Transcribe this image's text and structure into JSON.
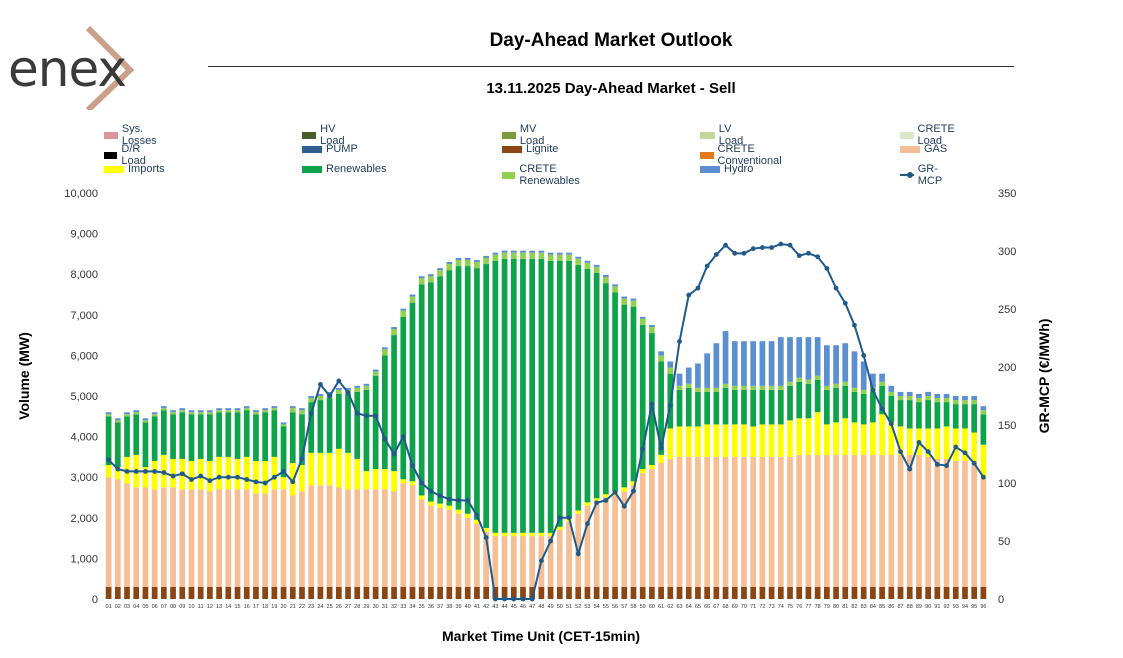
{
  "logo": {
    "text": "enex"
  },
  "header": {
    "title": "Day-Ahead Market Outlook",
    "subtitle": "13.11.2025  Day-Ahead Market - Sell"
  },
  "legend": [
    {
      "label": "Sys. Losses",
      "color": "#d9959a",
      "kind": "box"
    },
    {
      "label": "HV Load",
      "color": "#4a5e2a",
      "kind": "box"
    },
    {
      "label": "MV Load",
      "color": "#7a9a3c",
      "kind": "box"
    },
    {
      "label": "LV Load",
      "color": "#c3d99a",
      "kind": "box"
    },
    {
      "label": "CRETE Load",
      "color": "#dbe8c5",
      "kind": "box"
    },
    {
      "label": "D/R Load",
      "color": "#000000",
      "kind": "box"
    },
    {
      "label": "PUMP",
      "color": "#2f5d8e",
      "kind": "box"
    },
    {
      "label": "Lignite",
      "color": "#8b4513",
      "kind": "box"
    },
    {
      "label": "CRETE Conventional",
      "color": "#e07a1a",
      "kind": "box"
    },
    {
      "label": "GAS",
      "color": "#f6be94",
      "kind": "box"
    },
    {
      "label": "Imports",
      "color": "#ffff00",
      "kind": "box"
    },
    {
      "label": "Renewables",
      "color": "#0ea34a",
      "kind": "box"
    },
    {
      "label": "CRETE Renewables",
      "color": "#92d050",
      "kind": "box"
    },
    {
      "label": "Hydro",
      "color": "#5b8fd0",
      "kind": "box"
    },
    {
      "label": "GR-MCP",
      "color": "#1f5a8a",
      "kind": "line"
    }
  ],
  "chart_data": {
    "type": "bar",
    "stacked": true,
    "secondary_line": "GR-MCP",
    "xlabel": "Market Time Unit (CET-15min)",
    "ylabel": "Volume (MW)",
    "y2label": "GR-MCP (€/MWh)",
    "ylim": [
      0,
      10000
    ],
    "yticks": [
      "0",
      "1,000",
      "2,000",
      "3,000",
      "4,000",
      "5,000",
      "6,000",
      "7,000",
      "8,000",
      "9,000",
      "10,000"
    ],
    "y2lim": [
      0,
      350
    ],
    "y2ticks": [
      "0",
      "50",
      "100",
      "150",
      "200",
      "250",
      "300",
      "350"
    ],
    "categories": [
      "01",
      "02",
      "03",
      "04",
      "05",
      "06",
      "07",
      "08",
      "09",
      "10",
      "11",
      "12",
      "13",
      "14",
      "15",
      "16",
      "17",
      "18",
      "19",
      "20",
      "21",
      "22",
      "23",
      "24",
      "25",
      "26",
      "27",
      "28",
      "29",
      "30",
      "31",
      "32",
      "33",
      "34",
      "35",
      "36",
      "37",
      "38",
      "39",
      "40",
      "41",
      "42",
      "43",
      "44",
      "45",
      "46",
      "47",
      "48",
      "49",
      "50",
      "51",
      "52",
      "53",
      "54",
      "55",
      "56",
      "57",
      "58",
      "59",
      "60",
      "61",
      "62",
      "63",
      "64",
      "65",
      "66",
      "67",
      "68",
      "69",
      "70",
      "71",
      "72",
      "73",
      "74",
      "75",
      "76",
      "77",
      "78",
      "79",
      "80",
      "81",
      "82",
      "83",
      "84",
      "85",
      "86",
      "87",
      "88",
      "89",
      "90",
      "91",
      "92",
      "93",
      "94",
      "95",
      "96"
    ],
    "series": [
      {
        "name": "Lignite",
        "color": "#8b4513",
        "values": [
          300,
          300,
          300,
          300,
          300,
          300,
          300,
          300,
          300,
          300,
          300,
          300,
          300,
          300,
          300,
          300,
          300,
          300,
          300,
          300,
          300,
          300,
          300,
          300,
          300,
          300,
          300,
          300,
          300,
          300,
          300,
          300,
          300,
          300,
          300,
          300,
          300,
          300,
          300,
          300,
          300,
          300,
          300,
          300,
          300,
          300,
          300,
          300,
          300,
          300,
          300,
          300,
          300,
          300,
          300,
          300,
          300,
          300,
          300,
          300,
          300,
          300,
          300,
          300,
          300,
          300,
          300,
          300,
          300,
          300,
          300,
          300,
          300,
          300,
          300,
          300,
          300,
          300,
          300,
          300,
          300,
          300,
          300,
          300,
          300,
          300,
          300,
          300,
          300,
          300,
          300,
          300,
          300,
          300,
          300,
          300
        ]
      },
      {
        "name": "GAS",
        "color": "#f6be94",
        "values": [
          2700,
          2650,
          2550,
          2450,
          2450,
          2400,
          2450,
          2450,
          2400,
          2400,
          2400,
          2350,
          2400,
          2400,
          2400,
          2400,
          2300,
          2300,
          2400,
          2400,
          2250,
          2350,
          2500,
          2500,
          2500,
          2450,
          2400,
          2400,
          2400,
          2400,
          2400,
          2350,
          2550,
          2500,
          2150,
          2000,
          1950,
          1900,
          1800,
          1700,
          1550,
          1350,
          1250,
          1250,
          1250,
          1250,
          1250,
          1250,
          1250,
          1400,
          1600,
          1800,
          2000,
          2100,
          2200,
          2250,
          2350,
          2500,
          2800,
          2900,
          3050,
          3150,
          3200,
          3200,
          3200,
          3200,
          3200,
          3200,
          3200,
          3200,
          3200,
          3200,
          3200,
          3200,
          3200,
          3250,
          3250,
          3250,
          3250,
          3250,
          3250,
          3250,
          3250,
          3250,
          3250,
          3250,
          3250,
          3250,
          3250,
          3200,
          3150,
          3150,
          3100,
          3100,
          3050,
          2700
        ]
      },
      {
        "name": "Imports",
        "color": "#ffff00",
        "values": [
          300,
          300,
          650,
          800,
          500,
          700,
          800,
          700,
          750,
          700,
          750,
          750,
          800,
          800,
          750,
          800,
          800,
          800,
          800,
          300,
          800,
          650,
          800,
          800,
          800,
          950,
          900,
          750,
          450,
          500,
          500,
          500,
          100,
          100,
          100,
          100,
          100,
          100,
          100,
          100,
          100,
          100,
          80,
          80,
          80,
          80,
          80,
          80,
          80,
          80,
          80,
          80,
          80,
          80,
          80,
          100,
          100,
          100,
          100,
          100,
          200,
          750,
          750,
          750,
          750,
          800,
          800,
          800,
          800,
          800,
          750,
          800,
          800,
          800,
          900,
          900,
          900,
          1050,
          750,
          800,
          900,
          800,
          750,
          800,
          1000,
          800,
          700,
          650,
          650,
          700,
          750,
          800,
          800,
          800,
          750,
          800
        ]
      },
      {
        "name": "Renewables",
        "color": "#0ea34a",
        "values": [
          1200,
          1100,
          1000,
          1000,
          1100,
          1100,
          1100,
          1100,
          1150,
          1150,
          1100,
          1150,
          1100,
          1100,
          1150,
          1150,
          1150,
          1200,
          1150,
          1250,
          1250,
          1250,
          1250,
          1300,
          1350,
          1350,
          1450,
          1650,
          2000,
          2300,
          2800,
          3350,
          4000,
          4400,
          5200,
          5400,
          5600,
          5800,
          6000,
          6100,
          6200,
          6500,
          6700,
          6750,
          6750,
          6750,
          6750,
          6750,
          6700,
          6550,
          6350,
          6050,
          5750,
          5550,
          5200,
          4900,
          4500,
          4300,
          3550,
          3250,
          2300,
          1350,
          900,
          950,
          850,
          800,
          800,
          900,
          850,
          850,
          900,
          850,
          850,
          850,
          850,
          900,
          850,
          800,
          850,
          850,
          800,
          750,
          750,
          750,
          700,
          650,
          650,
          700,
          650,
          700,
          650,
          600,
          600,
          600,
          700,
          750
        ]
      },
      {
        "name": "CRETE Renewables",
        "color": "#92d050",
        "values": [
          50,
          50,
          50,
          50,
          50,
          50,
          50,
          50,
          50,
          50,
          50,
          50,
          50,
          50,
          50,
          50,
          50,
          50,
          50,
          50,
          100,
          100,
          100,
          100,
          100,
          100,
          100,
          100,
          100,
          100,
          150,
          150,
          150,
          150,
          150,
          150,
          150,
          150,
          150,
          150,
          150,
          150,
          150,
          150,
          150,
          150,
          150,
          150,
          150,
          150,
          150,
          150,
          150,
          150,
          150,
          150,
          150,
          150,
          150,
          150,
          150,
          150,
          100,
          100,
          100,
          100,
          100,
          100,
          100,
          100,
          100,
          100,
          100,
          100,
          100,
          100,
          100,
          100,
          100,
          100,
          100,
          100,
          100,
          100,
          100,
          100,
          100,
          100,
          100,
          100,
          100,
          100,
          100,
          100,
          100,
          100
        ]
      },
      {
        "name": "Hydro",
        "color": "#5b8fd0",
        "values": [
          50,
          50,
          50,
          50,
          50,
          50,
          50,
          50,
          50,
          50,
          50,
          50,
          50,
          50,
          50,
          50,
          50,
          50,
          50,
          50,
          50,
          50,
          50,
          50,
          50,
          50,
          50,
          50,
          50,
          50,
          50,
          50,
          50,
          50,
          50,
          50,
          50,
          50,
          50,
          50,
          50,
          50,
          50,
          50,
          50,
          50,
          50,
          50,
          50,
          50,
          50,
          50,
          50,
          50,
          50,
          50,
          50,
          50,
          50,
          50,
          100,
          150,
          300,
          400,
          600,
          850,
          1100,
          1300,
          1100,
          1100,
          1100,
          1100,
          1100,
          1200,
          1100,
          1000,
          1050,
          950,
          1000,
          950,
          950,
          900,
          700,
          350,
          200,
          150,
          100,
          100,
          100,
          100,
          100,
          100,
          100,
          100,
          100,
          100
        ]
      }
    ],
    "line": {
      "name": "GR-MCP",
      "color": "#1f5a8a",
      "values": [
        120,
        112,
        110,
        110,
        110,
        110,
        109,
        106,
        108,
        103,
        106,
        102,
        105,
        105,
        105,
        103,
        101,
        100,
        105,
        110,
        101,
        121,
        160,
        185,
        175,
        188,
        178,
        160,
        158,
        158,
        138,
        125,
        140,
        115,
        100,
        93,
        89,
        86,
        85,
        85,
        72,
        53,
        0,
        0,
        0,
        0,
        0,
        33,
        50,
        70,
        70,
        39,
        65,
        83,
        85,
        92,
        80,
        93,
        129,
        168,
        130,
        167,
        222,
        262,
        268,
        287,
        297,
        305,
        298,
        298,
        302,
        303,
        303,
        306,
        305,
        296,
        298,
        295,
        285,
        268,
        255,
        236,
        210,
        180,
        164,
        151,
        127,
        112,
        135,
        127,
        116,
        115,
        131,
        126,
        117,
        105
      ]
    }
  }
}
